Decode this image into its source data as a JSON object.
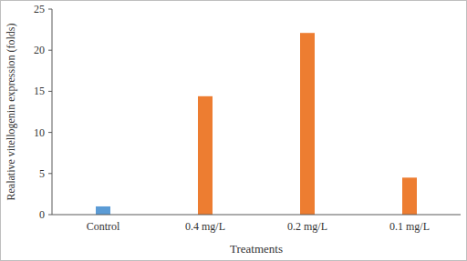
{
  "chart_data": {
    "type": "bar",
    "categories": [
      "Control",
      "0.4 mg/L",
      "0.2 mg/L",
      "0.1 mg/L"
    ],
    "values": [
      1,
      14.4,
      22.1,
      4.5
    ],
    "colors": [
      "#5b9bd5",
      "#ed7d31",
      "#ed7d31",
      "#ed7d31"
    ],
    "xlabel": "Treatments",
    "ylabel": "Realative vitellogenin expression (folds)",
    "ylim": [
      0,
      25
    ],
    "yticks": [
      0,
      5,
      10,
      15,
      20,
      25
    ],
    "grid": false
  }
}
